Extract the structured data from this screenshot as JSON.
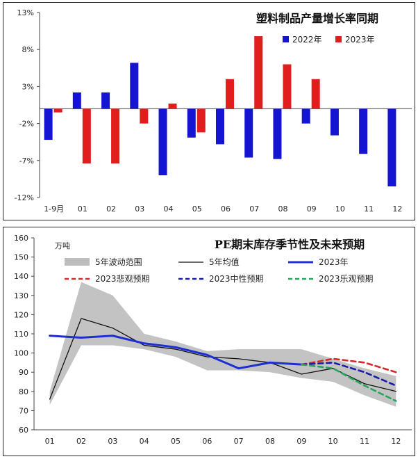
{
  "chart_data": [
    {
      "type": "bar",
      "title": "塑料制品产量增长率同期",
      "categories": [
        "1-9月",
        "01",
        "02",
        "03",
        "04",
        "05",
        "06",
        "07",
        "08",
        "09",
        "10",
        "11",
        "12"
      ],
      "ylim": [
        -12,
        13
      ],
      "yticks": [
        "13%",
        "8%",
        "3%",
        "-2%",
        "-7%",
        "-12%"
      ],
      "ytick_values": [
        13,
        8,
        3,
        -2,
        -7,
        -12
      ],
      "series": [
        {
          "name": "2022年",
          "color": "#1414d2",
          "values": [
            -4.2,
            2.2,
            2.2,
            6.2,
            -9.0,
            -3.9,
            -4.8,
            -6.6,
            -6.8,
            -2.0,
            -3.6,
            -6.1,
            -10.5
          ]
        },
        {
          "name": "2023年",
          "color": "#e01e1e",
          "values": [
            -0.5,
            -7.4,
            -7.4,
            -2.0,
            0.7,
            -3.2,
            4.0,
            9.8,
            6.0,
            4.0,
            null,
            null,
            null
          ]
        }
      ],
      "grid": false,
      "legend": "top-right"
    },
    {
      "type": "line",
      "title": "PE期末库存季节性及未来预期",
      "ylabel": "万吨",
      "categories": [
        "01",
        "02",
        "03",
        "04",
        "05",
        "06",
        "07",
        "08",
        "09",
        "10",
        "11",
        "12"
      ],
      "ylim": [
        60,
        160
      ],
      "yticks": [
        "160",
        "150",
        "140",
        "130",
        "120",
        "110",
        "100",
        "90",
        "80",
        "70",
        "60"
      ],
      "ytick_values": [
        160,
        150,
        140,
        130,
        120,
        110,
        100,
        90,
        80,
        70,
        60
      ],
      "range_band": {
        "name": "5年波动范围",
        "color": "#bdbdbd",
        "upper": [
          80,
          137,
          130,
          110,
          106,
          101,
          102,
          102,
          102,
          97,
          92,
          88
        ],
        "lower": [
          73,
          104,
          104,
          102,
          98,
          91,
          91,
          90,
          87,
          85,
          78,
          72
        ]
      },
      "series": [
        {
          "name": "5年均值",
          "color": "#111111",
          "style": "solid",
          "values": [
            76,
            118,
            113,
            104,
            102,
            98,
            97,
            95,
            89,
            92,
            84,
            80
          ]
        },
        {
          "name": "2023年",
          "color": "#1d2fd4",
          "style": "solid",
          "values": [
            109,
            108,
            109,
            105,
            103,
            99,
            92,
            95,
            94,
            null,
            null,
            null
          ]
        },
        {
          "name": "2023悲观预期",
          "color": "#d42a2a",
          "style": "dashed",
          "values": [
            null,
            null,
            null,
            null,
            null,
            null,
            null,
            null,
            94,
            97,
            95,
            90
          ]
        },
        {
          "name": "2023中性预期",
          "color": "#1a1aa8",
          "style": "dashed",
          "values": [
            null,
            null,
            null,
            null,
            null,
            null,
            null,
            null,
            94,
            95,
            90,
            83
          ]
        },
        {
          "name": "2023乐观预期",
          "color": "#26a65b",
          "style": "dashed",
          "values": [
            null,
            null,
            null,
            null,
            null,
            null,
            null,
            null,
            94,
            92,
            83,
            75
          ]
        }
      ],
      "grid": false,
      "legend": "top"
    }
  ]
}
